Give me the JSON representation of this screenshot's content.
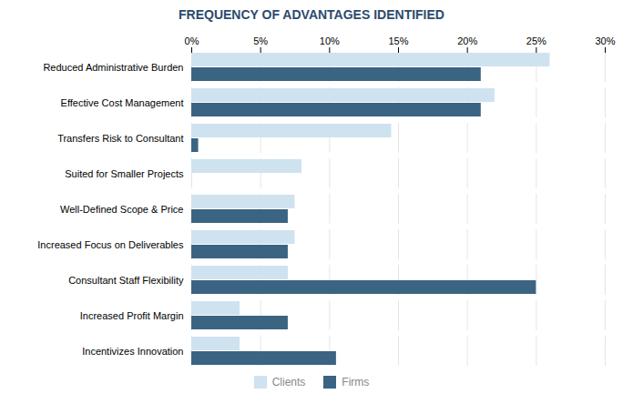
{
  "chart_data": {
    "type": "bar",
    "orientation": "horizontal",
    "title": "FREQUENCY OF ADVANTAGES IDENTIFIED",
    "categories": [
      "Reduced Administrative Burden",
      "Effective Cost Management",
      "Transfers Risk to Consultant",
      "Suited for Smaller Projects",
      "Well-Defined Scope & Price",
      "Increased Focus on Deliverables",
      "Consultant Staff Flexibility",
      "Increased Profit Margin",
      "Incentivizes Innovation"
    ],
    "series": [
      {
        "name": "Clients",
        "color": "#cfe2f0",
        "values": [
          26,
          22,
          14.5,
          8,
          7.5,
          7.5,
          7,
          3.5,
          3.5
        ]
      },
      {
        "name": "Firms",
        "color": "#3a6482",
        "values": [
          21,
          21,
          0.5,
          0,
          7,
          7,
          25,
          7,
          10.5
        ]
      }
    ],
    "xlim": [
      0,
      30
    ],
    "xticks": [
      {
        "value": 0,
        "label": "0%"
      },
      {
        "value": 5,
        "label": "5%"
      },
      {
        "value": 10,
        "label": "10%"
      },
      {
        "value": 15,
        "label": "15%"
      },
      {
        "value": 20,
        "label": "20%"
      },
      {
        "value": 25,
        "label": "25%"
      },
      {
        "value": 30,
        "label": "30%"
      }
    ],
    "grid": true,
    "legend": "bottom"
  }
}
